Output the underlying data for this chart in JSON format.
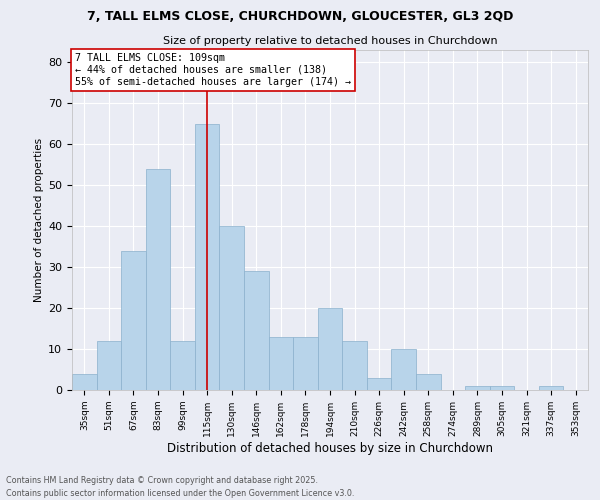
{
  "title1": "7, TALL ELMS CLOSE, CHURCHDOWN, GLOUCESTER, GL3 2QD",
  "title2": "Size of property relative to detached houses in Churchdown",
  "xlabel": "Distribution of detached houses by size in Churchdown",
  "ylabel": "Number of detached properties",
  "bar_labels": [
    "35sqm",
    "51sqm",
    "67sqm",
    "83sqm",
    "99sqm",
    "115sqm",
    "130sqm",
    "146sqm",
    "162sqm",
    "178sqm",
    "194sqm",
    "210sqm",
    "226sqm",
    "242sqm",
    "258sqm",
    "274sqm",
    "289sqm",
    "305sqm",
    "321sqm",
    "337sqm",
    "353sqm"
  ],
  "bar_values": [
    4,
    12,
    34,
    54,
    12,
    65,
    40,
    29,
    13,
    13,
    20,
    12,
    3,
    10,
    4,
    0,
    1,
    1,
    0,
    1,
    0
  ],
  "bar_color": "#b8d4ea",
  "bar_edge_color": "#8ab0cc",
  "bg_color": "#eaecf4",
  "grid_color": "#ffffff",
  "vline_x": 5.0,
  "annotation_title": "7 TALL ELMS CLOSE: 109sqm",
  "annotation_line1": "← 44% of detached houses are smaller (138)",
  "annotation_line2": "55% of semi-detached houses are larger (174) →",
  "vline_color": "#cc0000",
  "footnote1": "Contains HM Land Registry data © Crown copyright and database right 2025.",
  "footnote2": "Contains public sector information licensed under the Open Government Licence v3.0.",
  "ylim": [
    0,
    83
  ],
  "yticks": [
    0,
    10,
    20,
    30,
    40,
    50,
    60,
    70,
    80
  ]
}
